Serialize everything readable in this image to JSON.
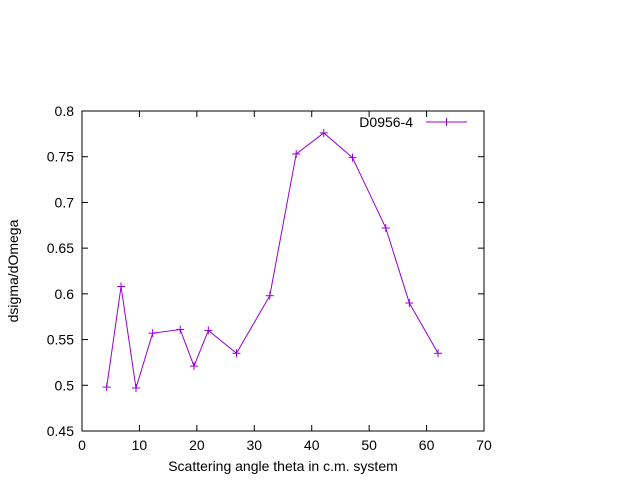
{
  "chart_data": {
    "type": "line",
    "title": "",
    "xlabel": "Scattering angle theta in c.m. system",
    "ylabel": "dsigma/dOmega",
    "xlim": [
      0,
      70
    ],
    "ylim": [
      0.45,
      0.8
    ],
    "xticks": [
      0,
      10,
      20,
      30,
      40,
      50,
      60,
      70
    ],
    "yticks": [
      0.45,
      0.5,
      0.55,
      0.6,
      0.65,
      0.7,
      0.75,
      0.8
    ],
    "xtick_labels": [
      "0",
      "10",
      "20",
      "30",
      "40",
      "50",
      "60",
      "70"
    ],
    "ytick_labels": [
      "0.45",
      "0.5",
      "0.55",
      "0.6",
      "0.65",
      "0.7",
      "0.75",
      "0.8"
    ],
    "grid": false,
    "legend_position": "top-right",
    "marker": "plus",
    "series": [
      {
        "name": "D0956-4",
        "color": "#9400d3",
        "x": [
          4.3,
          6.8,
          9.4,
          12.3,
          17.1,
          19.5,
          22.0,
          26.9,
          32.7,
          37.3,
          42.1,
          47.1,
          52.9,
          57.0,
          62.0
        ],
        "y": [
          0.498,
          0.608,
          0.497,
          0.557,
          0.561,
          0.521,
          0.56,
          0.535,
          0.598,
          0.753,
          0.776,
          0.749,
          0.672,
          0.59,
          0.535
        ]
      }
    ]
  }
}
